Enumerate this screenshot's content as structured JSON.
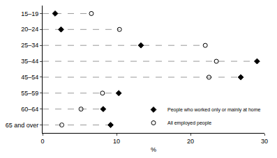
{
  "chart_data": {
    "type": "dot",
    "orientation": "horizontal",
    "categories": [
      "15–19",
      "20–24",
      "25–34",
      "35–44",
      "45–54",
      "55–59",
      "60–64",
      "65 and over"
    ],
    "series": [
      {
        "name": "People who worked only or mainly at home",
        "color": "#000000",
        "marker": "diamond",
        "values": [
          1.7,
          2.5,
          13.3,
          29.0,
          26.8,
          10.3,
          8.2,
          9.2
        ]
      },
      {
        "name": "All employed people",
        "color": "#000000",
        "marker": "circle-open",
        "values": [
          6.6,
          10.4,
          22.0,
          23.5,
          22.5,
          8.1,
          5.2,
          2.6
        ]
      }
    ],
    "xlabel": "%",
    "xlim": [
      0,
      30
    ],
    "xticks": [
      0,
      10,
      20,
      30
    ],
    "legend": "lower right",
    "grid": false
  }
}
